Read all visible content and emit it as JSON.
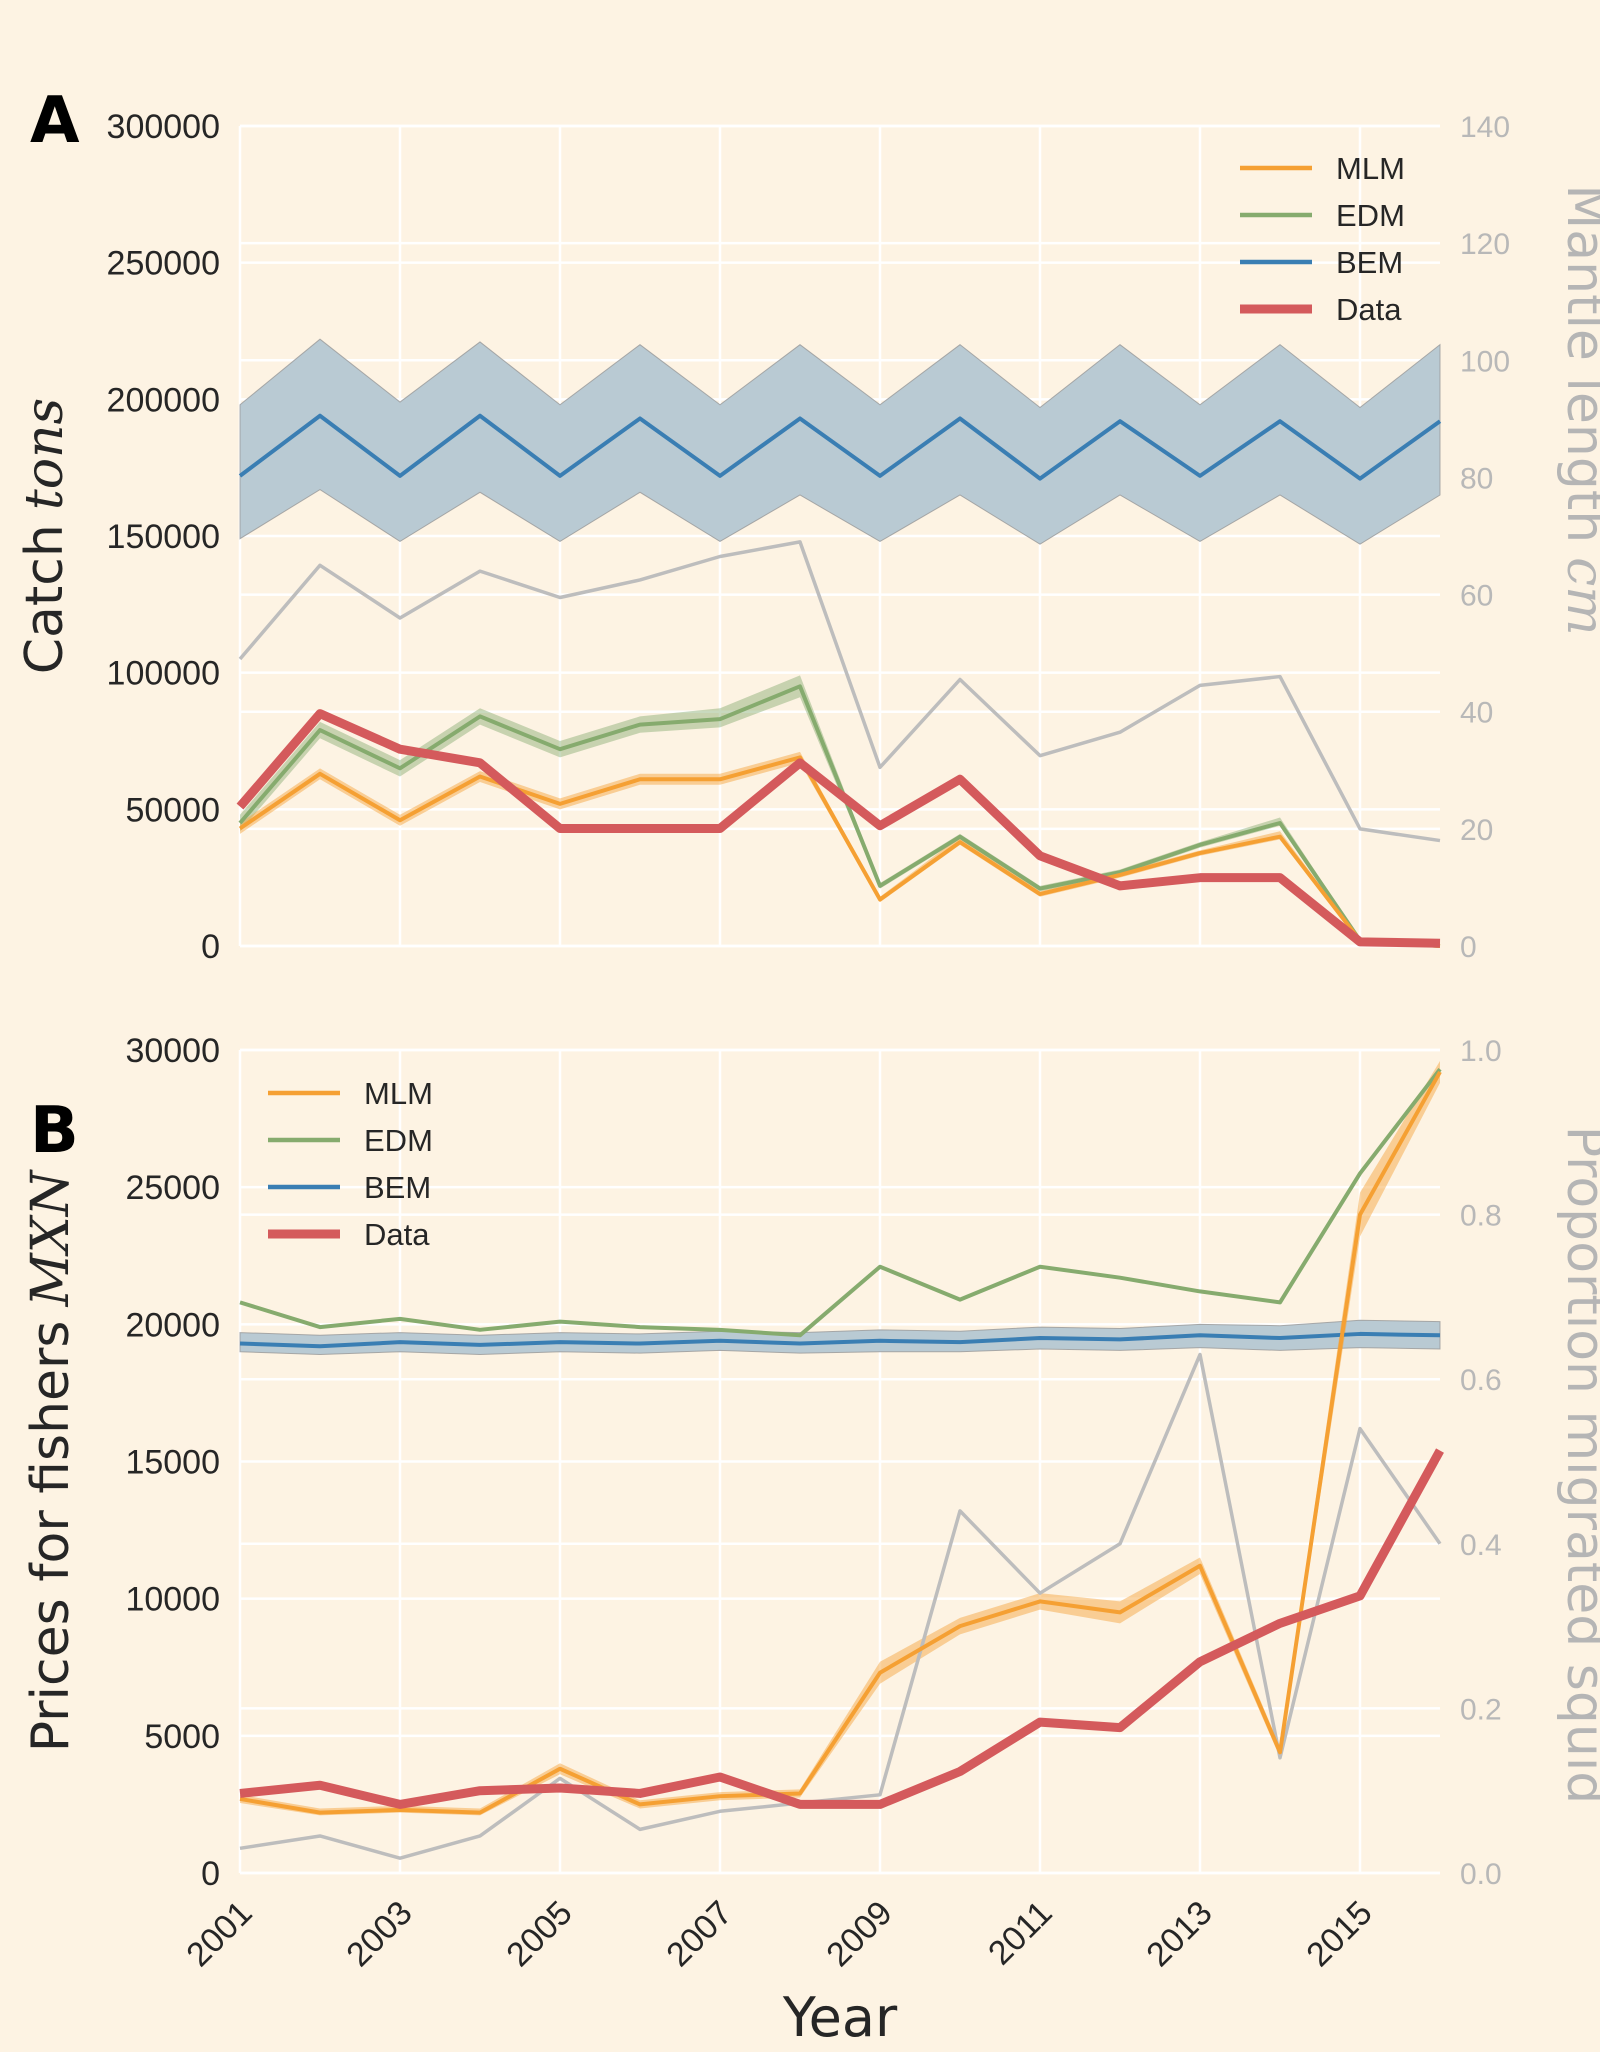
{
  "figure": {
    "background": "#fdf3e3",
    "grid": true
  },
  "colors": {
    "MLM": "#f5a033",
    "EDM": "#86ab6e",
    "BEM": "#3a7eb3",
    "BEM_band": "#b9cad3",
    "Data": "#d45a5c",
    "secondary": "#bdbdbd"
  },
  "chart_data": [
    {
      "type": "line",
      "panel": "A",
      "ylabel": "Catch",
      "ylabel_unit": "tons",
      "y2label": "Mantle length",
      "y2label_unit": "cm",
      "x": [
        2001,
        2002,
        2003,
        2004,
        2005,
        2006,
        2007,
        2008,
        2009,
        2010,
        2011,
        2012,
        2013,
        2014,
        2015,
        2016
      ],
      "xlim": [
        2001,
        2016
      ],
      "ylim": [
        0,
        300000
      ],
      "y2lim": [
        0,
        140
      ],
      "yticks": [
        0,
        50000,
        100000,
        150000,
        200000,
        250000,
        300000
      ],
      "yticklabels": [
        "0",
        "50000",
        "100000",
        "150000",
        "200000",
        "250000",
        "300000"
      ],
      "y2ticks": [
        0,
        20,
        40,
        60,
        80,
        100,
        120,
        140
      ],
      "y2ticklabels": [
        "0",
        "20",
        "40",
        "60",
        "80",
        "100",
        "120",
        "140"
      ],
      "legend": {
        "position": "top-right",
        "entries": [
          "MLM",
          "EDM",
          "BEM",
          "Data"
        ]
      },
      "series": [
        {
          "name": "BEM",
          "values": [
            172000,
            194000,
            172000,
            194000,
            172000,
            193000,
            172000,
            193000,
            172000,
            193000,
            171000,
            192000,
            172000,
            192000,
            171000,
            192000
          ],
          "lower": [
            149000,
            167000,
            148000,
            166000,
            148000,
            166000,
            148000,
            165000,
            148000,
            165000,
            147000,
            165000,
            148000,
            165000,
            147000,
            165000
          ],
          "upper": [
            198000,
            222000,
            199000,
            221000,
            198000,
            220000,
            198000,
            220000,
            198000,
            220000,
            197000,
            220000,
            198000,
            220000,
            197000,
            220000
          ]
        },
        {
          "name": "EDM",
          "values": [
            45000,
            79000,
            65000,
            84000,
            72000,
            81000,
            83000,
            95000,
            22000,
            40000,
            21000,
            27000,
            37000,
            45000,
            2000,
            0
          ],
          "lower": [
            42000,
            76000,
            62000,
            81000,
            69000,
            78000,
            80000,
            91000,
            21000,
            39000,
            20000,
            26000,
            36000,
            44000,
            1500,
            0
          ],
          "upper": [
            48000,
            82000,
            68000,
            87000,
            75000,
            84000,
            87000,
            99000,
            23000,
            41000,
            22000,
            28000,
            38000,
            47000,
            2500,
            0
          ]
        },
        {
          "name": "MLM",
          "values": [
            43000,
            63000,
            46000,
            62000,
            52000,
            61000,
            61000,
            69000,
            17000,
            38000,
            19000,
            26000,
            34000,
            40000,
            2000,
            0
          ],
          "lower": [
            41000,
            61000,
            44000,
            60000,
            50000,
            59000,
            59000,
            67000,
            16000,
            37000,
            18000,
            25000,
            33000,
            39000,
            1500,
            0
          ],
          "upper": [
            45000,
            65000,
            48000,
            64000,
            54000,
            63000,
            63000,
            71000,
            18000,
            40000,
            20000,
            27000,
            35000,
            42000,
            2500,
            0
          ]
        },
        {
          "name": "Data",
          "values": [
            51000,
            85000,
            72000,
            67000,
            43000,
            43000,
            43000,
            67000,
            44000,
            61000,
            33000,
            22000,
            25000,
            25000,
            1500,
            1000
          ]
        },
        {
          "name": "",
          "axis": "right",
          "values": [
            49,
            65,
            56,
            64,
            59.5,
            62.5,
            66.5,
            69,
            30.5,
            45.5,
            32.5,
            36.5,
            44.5,
            46,
            20,
            18
          ]
        }
      ]
    },
    {
      "type": "line",
      "panel": "B",
      "ylabel": "Prices for fishers",
      "ylabel_unit": "MXN",
      "y2label": "Proportion migrated squid",
      "xlabel": "Year",
      "x": [
        2001,
        2002,
        2003,
        2004,
        2005,
        2006,
        2007,
        2008,
        2009,
        2010,
        2011,
        2012,
        2013,
        2014,
        2015,
        2016
      ],
      "xlim": [
        2001,
        2016
      ],
      "xticks": [
        2001,
        2003,
        2005,
        2007,
        2009,
        2011,
        2013,
        2015
      ],
      "xticklabels": [
        "2001",
        "2003",
        "2005",
        "2007",
        "2009",
        "2011",
        "2013",
        "2015"
      ],
      "ylim": [
        0,
        30000
      ],
      "y2lim": [
        0,
        1.0
      ],
      "yticks": [
        0,
        5000,
        10000,
        15000,
        20000,
        25000,
        30000
      ],
      "yticklabels": [
        "0",
        "5000",
        "10000",
        "15000",
        "20000",
        "25000",
        "30000"
      ],
      "y2ticks": [
        0,
        0.2,
        0.4,
        0.6,
        0.8,
        1.0
      ],
      "y2ticklabels": [
        "0.0",
        "0.2",
        "0.4",
        "0.6",
        "0.8",
        "1.0"
      ],
      "legend": {
        "position": "top-left",
        "entries": [
          "MLM",
          "EDM",
          "BEM",
          "Data"
        ]
      },
      "series": [
        {
          "name": "BEM",
          "values": [
            19300,
            19200,
            19350,
            19250,
            19350,
            19300,
            19400,
            19300,
            19400,
            19350,
            19500,
            19450,
            19600,
            19500,
            19650,
            19600
          ],
          "lower": [
            19000,
            18900,
            19000,
            18900,
            19000,
            18950,
            19050,
            18950,
            19000,
            19000,
            19100,
            19050,
            19150,
            19050,
            19150,
            19100
          ],
          "upper": [
            19700,
            19600,
            19700,
            19600,
            19700,
            19650,
            19750,
            19700,
            19800,
            19750,
            19900,
            19850,
            20000,
            19950,
            20150,
            20100
          ]
        },
        {
          "name": "EDM",
          "values": [
            20800,
            19900,
            20200,
            19800,
            20100,
            19900,
            19800,
            19600,
            22100,
            20900,
            22100,
            21700,
            21200,
            20800,
            25500,
            29300
          ]
        },
        {
          "name": "MLM",
          "values": [
            2700,
            2200,
            2300,
            2200,
            3800,
            2500,
            2800,
            2900,
            7300,
            9000,
            9900,
            9500,
            11200,
            4400,
            24000,
            29200
          ],
          "lower": [
            2550,
            2100,
            2200,
            2100,
            3600,
            2350,
            2650,
            2750,
            6900,
            8700,
            9600,
            9100,
            10900,
            4200,
            23200,
            28800
          ],
          "upper": [
            2850,
            2350,
            2450,
            2350,
            4000,
            2650,
            2950,
            3050,
            7700,
            9300,
            10200,
            9900,
            11500,
            4600,
            24800,
            29600
          ]
        },
        {
          "name": "Data",
          "values": [
            2900,
            3200,
            2500,
            3000,
            3100,
            2900,
            3500,
            2500,
            2500,
            3700,
            5500,
            5300,
            7700,
            9100,
            10100,
            15400
          ]
        },
        {
          "name": "",
          "axis": "right",
          "values": [
            0.03,
            0.045,
            0.018,
            0.045,
            0.115,
            0.053,
            0.075,
            0.085,
            0.095,
            0.44,
            0.34,
            0.4,
            0.63,
            0.14,
            0.54,
            0.4
          ]
        }
      ]
    }
  ]
}
